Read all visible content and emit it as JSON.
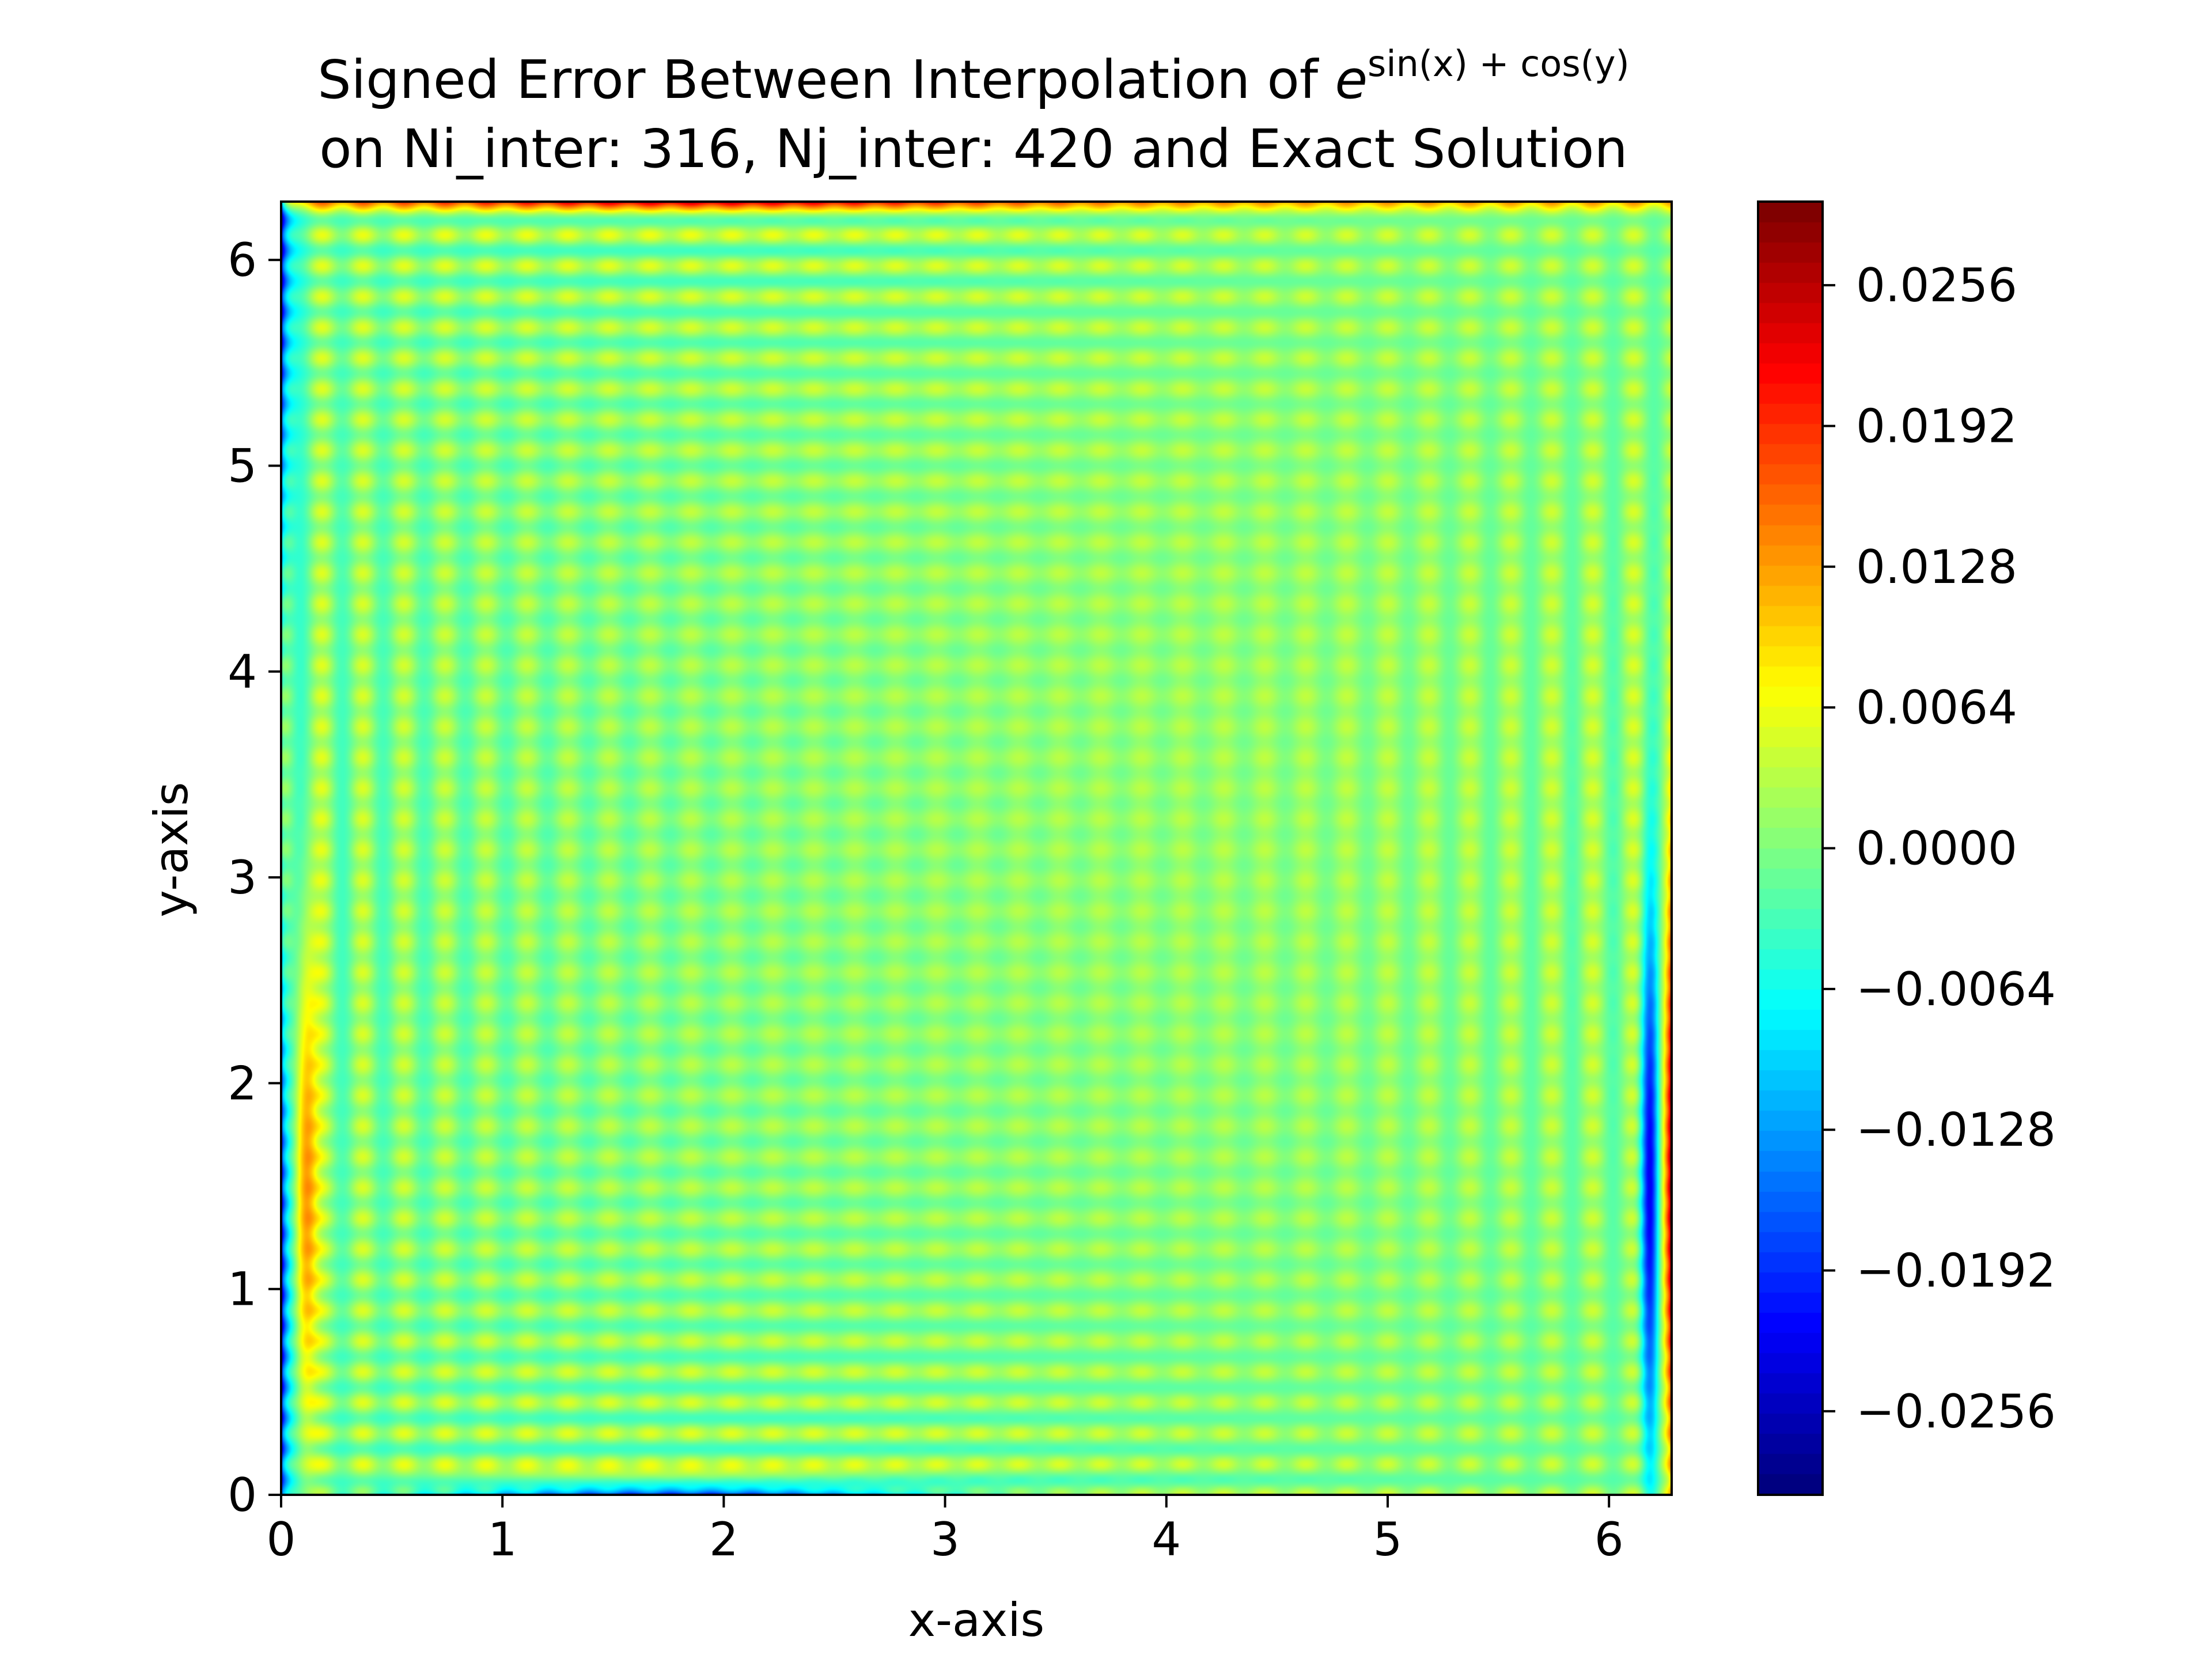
{
  "chart_data": {
    "type": "heatmap",
    "title_line1_prefix": "Signed Error Between Interpolation of ",
    "title_base": "e",
    "title_exponent": "sin(x) + cos(y)",
    "title_line2": "on Ni_inter: 316, Nj_inter: 420 and Exact Solution",
    "xlabel": "x-axis",
    "ylabel": "y-axis",
    "xlim": [
      0,
      6.2832
    ],
    "ylim": [
      0,
      6.2832
    ],
    "xticks": [
      0,
      1,
      2,
      3,
      4,
      5,
      6
    ],
    "yticks": [
      0,
      1,
      2,
      3,
      4,
      5,
      6
    ],
    "colormap": "jet",
    "colorbar": {
      "range": [
        -0.0294,
        0.0294
      ],
      "ticks": [
        0.0256,
        0.0192,
        0.0128,
        0.0064,
        0.0,
        -0.0064,
        -0.0128,
        -0.0192,
        -0.0256
      ],
      "tick_labels": [
        "0.0256",
        "0.0192",
        "0.0128",
        "0.0064",
        "0.0000",
        "−0.0064",
        "−0.0128",
        "−0.0192",
        "−0.0256"
      ]
    },
    "features": {
      "interior_value_approx": 0.0,
      "left_edge_min_approx": -0.029,
      "left_edge_max_approx": 0.02,
      "right_edge_min_approx": -0.029,
      "right_edge_max_approx": 0.029,
      "top_edge_max_approx": 0.022,
      "bottom_edge_min_approx": -0.027,
      "pattern": "oscillating stripes decaying from boundaries toward interior"
    }
  }
}
